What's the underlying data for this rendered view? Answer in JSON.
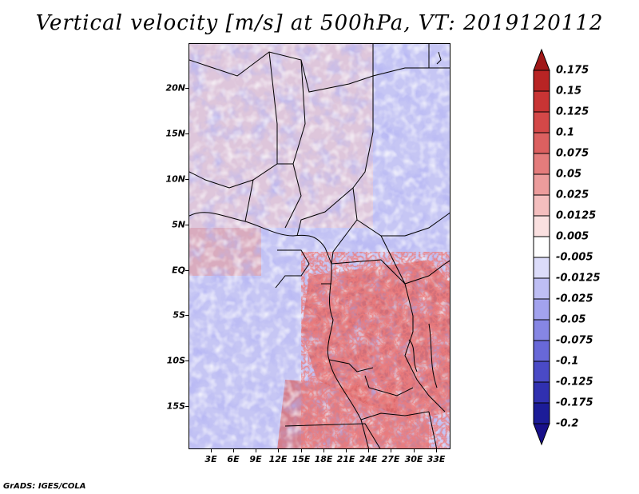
{
  "title": "Vertical velocity [m/s] at 500hPa, VT: 2019120112",
  "map": {
    "lat_labels": [
      "20N",
      "15N",
      "10N",
      "5N",
      "EQ",
      "5S",
      "10S",
      "15S"
    ],
    "lon_labels": [
      "3E",
      "6E",
      "9E",
      "12E",
      "15E",
      "18E",
      "21E",
      "24E",
      "27E",
      "30E",
      "33E"
    ],
    "extent": {
      "lon_min": 0,
      "lon_max": 35,
      "lat_min": -19.7,
      "lat_max": 25
    }
  },
  "colorbar": {
    "labels": [
      "0.175",
      "0.15",
      "0.125",
      "0.1",
      "0.075",
      "0.05",
      "0.025",
      "0.0125",
      "0.005",
      "-0.005",
      "-0.0125",
      "-0.025",
      "-0.05",
      "-0.075",
      "-0.1",
      "-0.125",
      "-0.175",
      "-0.2"
    ],
    "colors": [
      "#a01818",
      "#b82424",
      "#c83434",
      "#d44848",
      "#dc6060",
      "#e47c7c",
      "#ec9c9c",
      "#f4bebe",
      "#fae0e0",
      "#ffffff",
      "#dcdcfa",
      "#bebef4",
      "#a2a2ee",
      "#8686e4",
      "#6868d8",
      "#4a4ac6",
      "#3030b0",
      "#1c1c98",
      "#18108a"
    ]
  },
  "credit": "GrADS: IGES/COLA"
}
